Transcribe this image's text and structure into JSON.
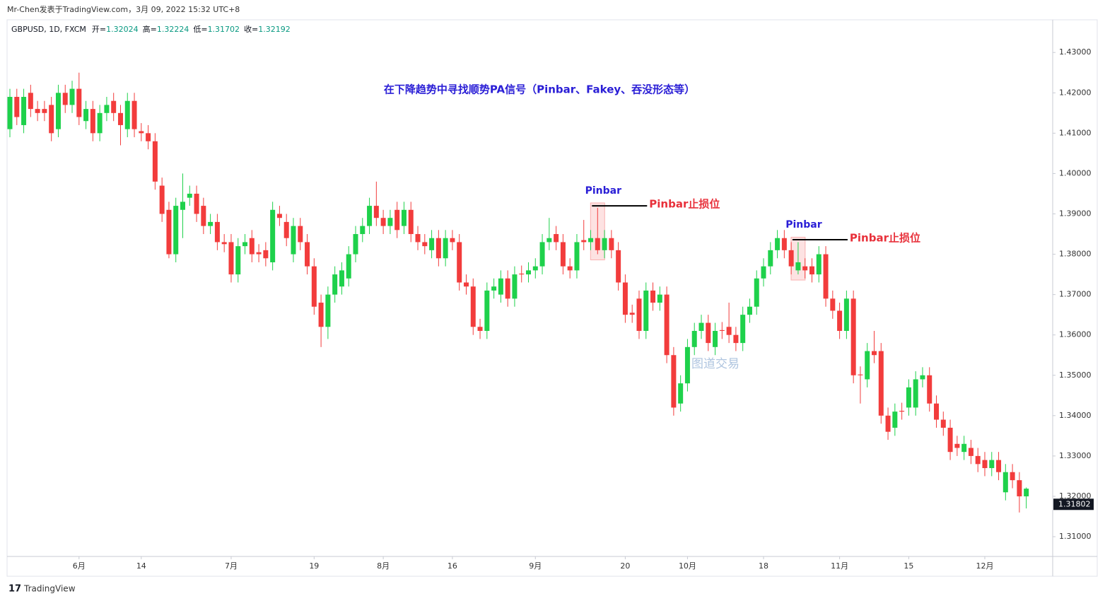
{
  "header": "Mr-Chen发表于TradingView.com，3月 09, 2022 15:32 UTC+8",
  "chart_data": {
    "type": "candlestick",
    "legend": {
      "symbol": "GBPUSD, 1D, FXCM",
      "labels": [
        "开=",
        "高=",
        "低=",
        "收="
      ],
      "values": [
        1.32024,
        1.32224,
        1.31702,
        1.32192
      ]
    },
    "categories": [
      null,
      null,
      null,
      null,
      null,
      null,
      null,
      null,
      null,
      null,
      "6月",
      null,
      null,
      null,
      null,
      null,
      null,
      null,
      null,
      "14",
      null,
      null,
      null,
      null,
      null,
      null,
      null,
      null,
      null,
      null,
      null,
      null,
      "7月",
      null,
      null,
      null,
      null,
      null,
      null,
      null,
      null,
      null,
      null,
      null,
      "19",
      null,
      null,
      null,
      null,
      null,
      null,
      null,
      null,
      null,
      "8月",
      null,
      null,
      null,
      null,
      null,
      null,
      null,
      null,
      null,
      "16",
      null,
      null,
      null,
      null,
      null,
      null,
      null,
      null,
      null,
      null,
      null,
      "9月",
      null,
      null,
      null,
      null,
      null,
      null,
      null,
      null,
      null,
      null,
      null,
      null,
      "20",
      null,
      null,
      null,
      null,
      null,
      null,
      null,
      null,
      "10月",
      null,
      null,
      null,
      null,
      null,
      null,
      null,
      null,
      null,
      null,
      "18",
      null,
      null,
      null,
      null,
      null,
      null,
      null,
      null,
      null,
      null,
      "11月",
      null,
      null,
      null,
      null,
      null,
      null,
      null,
      null,
      null,
      "15",
      null,
      null,
      null,
      null,
      null,
      null,
      null,
      null,
      null,
      null,
      "12月",
      null,
      null,
      null,
      null,
      null,
      null
    ],
    "open": [
      1.411,
      1.419,
      1.412,
      1.42,
      1.416,
      1.416,
      1.417,
      1.411,
      1.42,
      1.417,
      1.421,
      1.413,
      1.416,
      1.41,
      1.415,
      1.418,
      1.415,
      1.411,
      1.418,
      1.4105,
      1.41,
      1.408,
      1.397,
      1.391,
      1.38,
      1.391,
      1.394,
      1.395,
      1.392,
      1.387,
      1.388,
      1.383,
      1.383,
      1.375,
      1.382,
      1.384,
      1.3805,
      1.381,
      1.378,
      1.39,
      1.388,
      1.38,
      1.387,
      1.383,
      1.377,
      1.368,
      1.362,
      1.37,
      1.372,
      1.374,
      1.38,
      1.385,
      1.387,
      1.392,
      1.389,
      1.387,
      1.391,
      1.387,
      1.391,
      1.385,
      1.383,
      1.381,
      1.384,
      1.379,
      1.384,
      1.383,
      1.373,
      1.372,
      1.362,
      1.361,
      1.371,
      1.37,
      1.374,
      1.369,
      1.3752,
      1.375,
      1.376,
      1.377,
      1.383,
      1.385,
      1.383,
      1.377,
      1.376,
      1.3835,
      1.383,
      1.384,
      1.381,
      1.384,
      1.381,
      1.373,
      1.3655,
      1.369,
      1.361,
      1.371,
      1.368,
      1.37,
      1.355,
      1.343,
      1.348,
      1.357,
      1.361,
      1.363,
      1.357,
      1.3612,
      1.362,
      1.36,
      1.358,
      1.365,
      1.367,
      1.374,
      1.377,
      1.381,
      1.384,
      1.381,
      1.376,
      1.377,
      1.377,
      1.375,
      1.38,
      1.369,
      1.366,
      1.361,
      1.369,
      1.3502,
      1.349,
      1.356,
      1.356,
      1.34,
      1.337,
      1.3412,
      1.342,
      1.342,
      1.349,
      1.35,
      1.343,
      1.339,
      1.337,
      1.333,
      1.331,
      1.332,
      1.33,
      1.329,
      1.327,
      1.329,
      1.321,
      1.326,
      1.324,
      1.32
    ],
    "high": [
      1.421,
      1.421,
      1.421,
      1.422,
      1.418,
      1.418,
      1.419,
      1.422,
      1.422,
      1.423,
      1.425,
      1.418,
      1.418,
      1.417,
      1.419,
      1.42,
      1.417,
      1.42,
      1.42,
      1.4125,
      1.412,
      1.41,
      1.399,
      1.393,
      1.394,
      1.4,
      1.397,
      1.397,
      1.394,
      1.39,
      1.39,
      1.385,
      1.385,
      1.384,
      1.385,
      1.386,
      1.3825,
      1.383,
      1.393,
      1.392,
      1.39,
      1.389,
      1.389,
      1.385,
      1.379,
      1.37,
      1.372,
      1.377,
      1.378,
      1.382,
      1.387,
      1.389,
      1.394,
      1.398,
      1.391,
      1.391,
      1.393,
      1.393,
      1.393,
      1.387,
      1.385,
      1.386,
      1.386,
      1.386,
      1.386,
      1.385,
      1.375,
      1.374,
      1.364,
      1.373,
      1.374,
      1.376,
      1.376,
      1.377,
      1.3772,
      1.378,
      1.379,
      1.385,
      1.389,
      1.387,
      1.385,
      1.379,
      1.385,
      1.3885,
      1.386,
      1.3915,
      1.386,
      1.386,
      1.383,
      1.375,
      1.3675,
      1.371,
      1.373,
      1.373,
      1.372,
      1.372,
      1.357,
      1.35,
      1.359,
      1.363,
      1.365,
      1.365,
      1.363,
      1.3632,
      1.368,
      1.362,
      1.367,
      1.369,
      1.376,
      1.379,
      1.383,
      1.386,
      1.386,
      1.383,
      1.383,
      1.379,
      1.379,
      1.382,
      1.382,
      1.371,
      1.368,
      1.371,
      1.371,
      1.3522,
      1.358,
      1.361,
      1.358,
      1.342,
      1.343,
      1.3432,
      1.349,
      1.351,
      1.352,
      1.352,
      1.345,
      1.341,
      1.339,
      1.335,
      1.335,
      1.334,
      1.332,
      1.331,
      1.331,
      1.331,
      1.328,
      1.328,
      1.326,
      1.3222
    ],
    "low": [
      1.409,
      1.412,
      1.41,
      1.414,
      1.413,
      1.413,
      1.408,
      1.409,
      1.415,
      1.415,
      1.412,
      1.411,
      1.408,
      1.408,
      1.413,
      1.413,
      1.407,
      1.409,
      1.409,
      1.408,
      1.406,
      1.396,
      1.388,
      1.379,
      1.378,
      1.384,
      1.392,
      1.388,
      1.385,
      1.385,
      1.381,
      1.3805,
      1.373,
      1.373,
      1.38,
      1.378,
      1.378,
      1.377,
      1.376,
      1.387,
      1.382,
      1.378,
      1.381,
      1.375,
      1.365,
      1.357,
      1.359,
      1.368,
      1.37,
      1.372,
      1.378,
      1.383,
      1.385,
      1.387,
      1.385,
      1.385,
      1.384,
      1.385,
      1.383,
      1.381,
      1.38,
      1.379,
      1.377,
      1.377,
      1.381,
      1.371,
      1.37,
      1.36,
      1.359,
      1.359,
      1.369,
      1.368,
      1.367,
      1.367,
      1.373,
      1.373,
      1.374,
      1.375,
      1.381,
      1.381,
      1.375,
      1.374,
      1.374,
      1.381,
      1.381,
      1.38,
      1.379,
      1.379,
      1.371,
      1.363,
      1.363,
      1.359,
      1.359,
      1.366,
      1.366,
      1.353,
      1.34,
      1.341,
      1.346,
      1.355,
      1.359,
      1.356,
      1.355,
      1.359,
      1.358,
      1.356,
      1.356,
      1.363,
      1.365,
      1.372,
      1.375,
      1.379,
      1.379,
      1.375,
      1.375,
      1.374,
      1.373,
      1.373,
      1.367,
      1.364,
      1.359,
      1.359,
      1.348,
      1.343,
      1.347,
      1.353,
      1.338,
      1.334,
      1.335,
      1.339,
      1.34,
      1.34,
      1.347,
      1.341,
      1.337,
      1.335,
      1.329,
      1.33,
      1.329,
      1.328,
      1.326,
      1.325,
      1.325,
      1.324,
      1.319,
      1.322,
      1.316,
      1.317
    ],
    "close": [
      1.419,
      1.414,
      1.419,
      1.416,
      1.415,
      1.415,
      1.41,
      1.42,
      1.417,
      1.421,
      1.414,
      1.416,
      1.41,
      1.415,
      1.417,
      1.415,
      1.412,
      1.418,
      1.411,
      1.41,
      1.408,
      1.398,
      1.39,
      1.38,
      1.392,
      1.393,
      1.395,
      1.39,
      1.387,
      1.388,
      1.383,
      1.3825,
      1.375,
      1.382,
      1.383,
      1.38,
      1.38,
      1.379,
      1.391,
      1.389,
      1.384,
      1.387,
      1.383,
      1.377,
      1.367,
      1.362,
      1.37,
      1.375,
      1.376,
      1.38,
      1.385,
      1.387,
      1.392,
      1.389,
      1.387,
      1.389,
      1.386,
      1.391,
      1.385,
      1.383,
      1.382,
      1.384,
      1.379,
      1.384,
      1.383,
      1.373,
      1.372,
      1.362,
      1.361,
      1.371,
      1.372,
      1.374,
      1.369,
      1.375,
      1.375,
      1.376,
      1.377,
      1.383,
      1.384,
      1.383,
      1.377,
      1.376,
      1.383,
      1.383,
      1.384,
      1.381,
      1.384,
      1.381,
      1.373,
      1.365,
      1.365,
      1.361,
      1.371,
      1.368,
      1.37,
      1.355,
      1.342,
      1.348,
      1.357,
      1.361,
      1.363,
      1.358,
      1.361,
      1.361,
      1.36,
      1.358,
      1.365,
      1.367,
      1.374,
      1.377,
      1.381,
      1.384,
      1.381,
      1.377,
      1.378,
      1.376,
      1.375,
      1.38,
      1.369,
      1.366,
      1.361,
      1.369,
      1.35,
      1.35,
      1.356,
      1.355,
      1.34,
      1.336,
      1.341,
      1.341,
      1.347,
      1.349,
      1.35,
      1.343,
      1.339,
      1.337,
      1.331,
      1.332,
      1.333,
      1.33,
      1.328,
      1.327,
      1.329,
      1.326,
      1.326,
      1.324,
      1.32,
      1.3219
    ],
    "up_color": "#1ed14b",
    "down_color": "#f23c3c",
    "ylim": [
      1.3051,
      1.4381
    ],
    "yticks": [
      {
        "value": 1.31,
        "label": "1.31000"
      },
      {
        "value": 1.32,
        "label": "1.32000"
      },
      {
        "value": 1.33,
        "label": "1.33000"
      },
      {
        "value": 1.34,
        "label": "1.34000"
      },
      {
        "value": 1.35,
        "label": "1.35000"
      },
      {
        "value": 1.36,
        "label": "1.36000"
      },
      {
        "value": 1.37,
        "label": "1.37000"
      },
      {
        "value": 1.38,
        "label": "1.38000"
      },
      {
        "value": 1.39,
        "label": "1.39000"
      },
      {
        "value": 1.4,
        "label": "1.40000"
      },
      {
        "value": 1.41,
        "label": "1.41000"
      },
      {
        "value": 1.42,
        "label": "1.42000"
      },
      {
        "value": 1.43,
        "label": "1.43000"
      }
    ],
    "last_price": 1.31802,
    "title": "在下降趋势中寻找顺势PA信号（Pinbar、Fakey、吞没形态等）",
    "watermark": "图道交易",
    "pinbars": [
      {
        "label": "Pinbar",
        "stop_label": "Pinbar止损位",
        "index": 85,
        "stop": 1.392
      },
      {
        "label": "Pinbar",
        "stop_label": "Pinbar止损位",
        "index": 114,
        "stop": 1.3836
      }
    ]
  },
  "footer": "TradingView"
}
